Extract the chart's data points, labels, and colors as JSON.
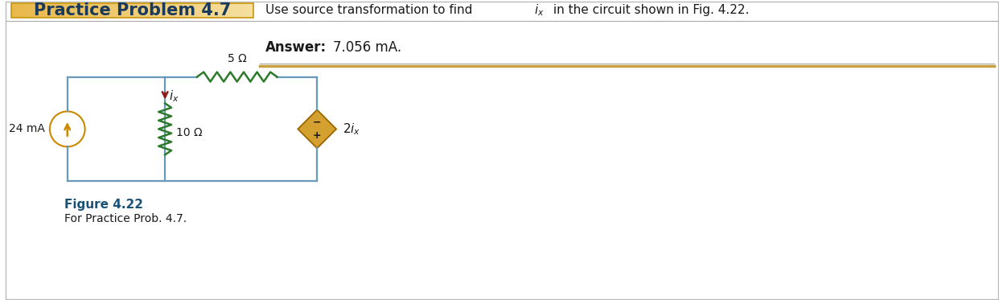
{
  "title": "Practice Problem 4.7",
  "problem_text_part1": "Use source transformation to find ",
  "problem_text_ix": "i",
  "problem_text_x": "x",
  "problem_text_part2": " in the circuit shown in Fig. 4.22.",
  "answer_label": "Answer:",
  "answer_value": "7.056 mA.",
  "figure_label": "Figure 4.22",
  "figure_caption": "For Practice Prob. 4.7.",
  "current_source_value": "24 mA",
  "resistor1_value": "10 Ω",
  "resistor2_value": "5 Ω",
  "circuit_wire_color": "#6699bb",
  "resistor_color": "#2d7a2d",
  "current_source_color": "#cc8800",
  "dep_source_fill": "#d4a030",
  "dep_source_edge": "#996600",
  "arrow_color": "#8b1a1a",
  "wire_color": "#6699bb",
  "fig_label_color": "#1a5276",
  "bg_color": "#ffffff",
  "outer_border_color": "#bbbbbb",
  "header_bg_left": "#e8b84b",
  "header_bg_right": "#f5dfa0",
  "header_border_color": "#c8960a",
  "header_text_color": "#1a3a5c",
  "top_line_color": "#aaaaaa",
  "divider_line_color": "#aaaaaa",
  "divider_bottom_color": "#c8a040"
}
